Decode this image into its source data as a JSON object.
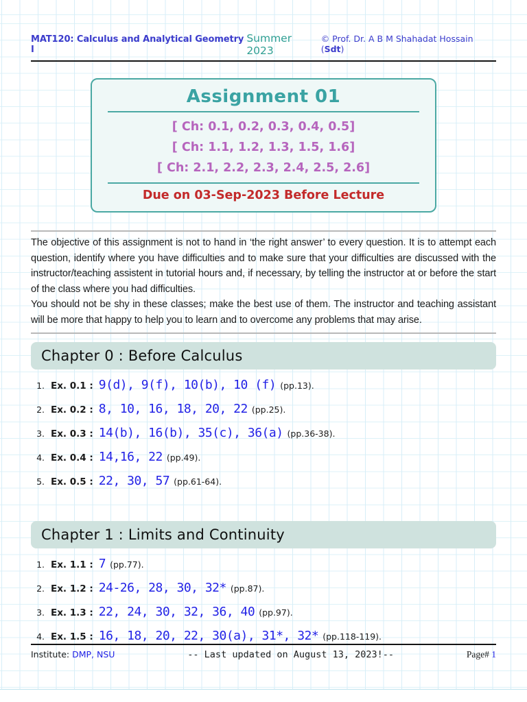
{
  "header": {
    "course": "MAT120: Calculus and Analytical Geometry I",
    "term": "Summer 2023",
    "copyright_prefix": "© Prof. Dr. A B M Shahadat Hossain (",
    "copyright_bold": "Sdt",
    "copyright_suffix": ")"
  },
  "assignment": {
    "title": "Assignment 01",
    "chapter_lines": [
      "[ Ch: 0.1, 0.2, 0.3, 0.4, 0.5]",
      "[ Ch: 1.1, 1.2, 1.3, 1.5, 1.6]",
      "[ Ch: 2.1, 2.2, 2.3, 2.4, 2.5, 2.6]"
    ],
    "due_note": "Due on 03-Sep-2023 Before Lecture"
  },
  "objective": {
    "paragraph1": "The objective of this assignment is not to hand in ‘the right answer’ to every question. It is to attempt each question, identify where you have difficulties and to make sure that your difficulties are discussed with the instructor/teaching assistent in tutorial hours and, if necessary, by telling the instructor at or before the start of the class where you had difficulties.",
    "paragraph2": "You should not be shy in these classes; make the best use of them. The instructor and teaching assistant will be more that happy to help you to learn and to overcome any problems that may arise."
  },
  "sections": [
    {
      "title": "Chapter 0 : Before Calculus",
      "items": [
        {
          "num": "1.",
          "label": "Ex. 0.1 :",
          "problems": "9(d), 9(f), 10(b), 10 (f)",
          "pages": "(pp.13)."
        },
        {
          "num": "2.",
          "label": "Ex. 0.2 :",
          "problems": "8, 10, 16, 18, 20, 22",
          "pages": "(pp.25)."
        },
        {
          "num": "3.",
          "label": "Ex. 0.3 :",
          "problems": "14(b), 16(b), 35(c), 36(a)",
          "pages": "(pp.36-38)."
        },
        {
          "num": "4.",
          "label": "Ex. 0.4 :",
          "problems": "14,16, 22",
          "pages": "(pp.49)."
        },
        {
          "num": "5.",
          "label": "Ex. 0.5 :",
          "problems": "22, 30, 57",
          "pages": "(pp.61-64)."
        }
      ]
    },
    {
      "title": "Chapter 1 : Limits and Continuity",
      "items": [
        {
          "num": "1.",
          "label": "Ex. 1.1 :",
          "problems": "7",
          "pages": "(pp.77)."
        },
        {
          "num": "2.",
          "label": "Ex. 1.2 :",
          "problems": "24-26, 28, 30, 32*",
          "pages": "(pp.87)."
        },
        {
          "num": "3.",
          "label": "Ex. 1.3 :",
          "problems": "22, 24, 30, 32, 36, 40",
          "pages": "(pp.97)."
        },
        {
          "num": "4.",
          "label": "Ex. 1.5 :",
          "problems": "16, 18, 20, 22, 30(a), 31*, 32*",
          "pages": "(pp.118-119)."
        }
      ]
    }
  ],
  "footer": {
    "institute_label": "Institute:",
    "institute_value": "DMP, NSU",
    "updated": "-- Last updated on August 13, 2023!--",
    "page_label": "Page#",
    "page_number": "1"
  },
  "colors": {
    "header_blue": "#3c3ccc",
    "term_teal": "#2f9f93",
    "box_border_teal": "#4aa8a3",
    "title_teal": "#3aa3a3",
    "chapter_purple": "#b665bd",
    "due_red": "#c32a2a",
    "exercise_blue": "#2222e6",
    "link_blue": "#2323e6",
    "section_bar_bg": "#cfe2de",
    "grid_line": "#d7eef8"
  }
}
